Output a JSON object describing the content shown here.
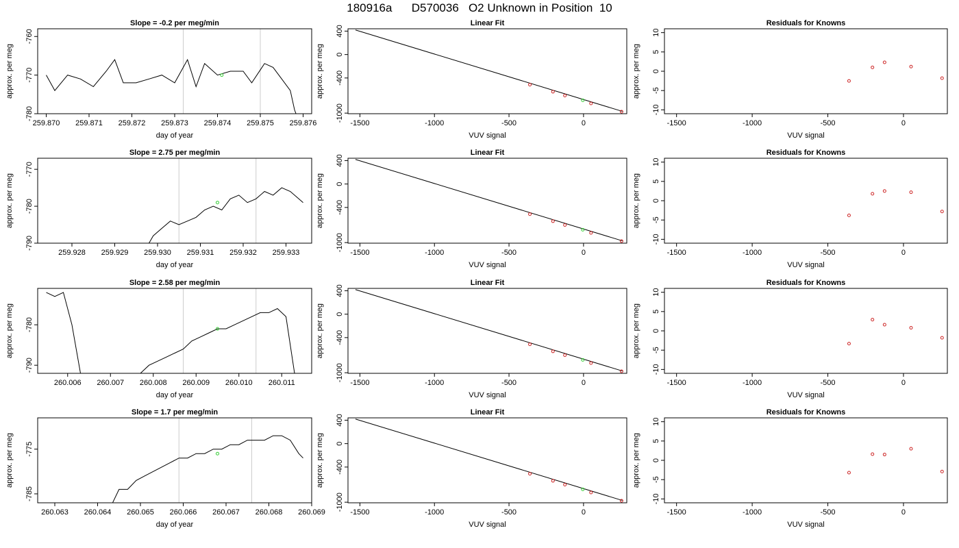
{
  "header": {
    "title": "180916a      D570036   O2 Unknown in Position  10"
  },
  "colors": {
    "line": "#000000",
    "known_point": "#cc2222",
    "unknown_point": "#33cc33",
    "vline": "#cccccc"
  },
  "chart_data": [
    {
      "type": "line",
      "title": "Slope =  -0.2  per meg/min",
      "xlabel": "day of year",
      "ylabel": "approx. per meg",
      "xlim": [
        259.8698,
        259.8762
      ],
      "ylim": [
        -780,
        -758
      ],
      "xticks": [
        259.87,
        259.871,
        259.872,
        259.873,
        259.874,
        259.875,
        259.876
      ],
      "xtick_labels": [
        "259.870",
        "259.871",
        "259.872",
        "259.873",
        "259.874",
        "259.875",
        "259.876"
      ],
      "yticks": [
        -760,
        -770,
        -780
      ],
      "ytick_labels": [
        "-760",
        "-770",
        "-780"
      ],
      "vlines": [
        259.8732,
        259.875
      ],
      "unknown_point": {
        "x": 259.8741,
        "y": -770
      },
      "series": [
        {
          "values": [
            [
              259.87,
              -770
            ],
            [
              259.8702,
              -774
            ],
            [
              259.8705,
              -770
            ],
            [
              259.8708,
              -771
            ],
            [
              259.8711,
              -773
            ],
            [
              259.8714,
              -769
            ],
            [
              259.8716,
              -766
            ],
            [
              259.8718,
              -772
            ],
            [
              259.8721,
              -772
            ],
            [
              259.8724,
              -771
            ],
            [
              259.8727,
              -770
            ],
            [
              259.873,
              -772
            ],
            [
              259.8733,
              -766
            ],
            [
              259.8735,
              -773
            ],
            [
              259.8737,
              -767
            ],
            [
              259.874,
              -770
            ],
            [
              259.8743,
              -769
            ],
            [
              259.8746,
              -769
            ],
            [
              259.8748,
              -772
            ],
            [
              259.8751,
              -767
            ],
            [
              259.8753,
              -768
            ],
            [
              259.8755,
              -771
            ],
            [
              259.8757,
              -774
            ],
            [
              259.8758,
              -779
            ],
            [
              259.8759,
              -782
            ]
          ]
        }
      ]
    },
    {
      "type": "line",
      "title": "Slope =  2.75  per meg/min",
      "xlabel": "day of year",
      "ylabel": "approx. per meg",
      "xlim": [
        259.9272,
        259.9336
      ],
      "ylim": [
        -790,
        -767
      ],
      "xticks": [
        259.928,
        259.929,
        259.93,
        259.931,
        259.932,
        259.933
      ],
      "xtick_labels": [
        "259.928",
        "259.929",
        "259.930",
        "259.931",
        "259.932",
        "259.933"
      ],
      "yticks": [
        -770,
        -780,
        -790
      ],
      "ytick_labels": [
        "-770",
        "-780",
        "-790"
      ],
      "vlines": [
        259.9305,
        259.9323
      ],
      "unknown_point": {
        "x": 259.9314,
        "y": -779
      },
      "series": [
        {
          "values": [
            [
              259.9297,
              -792
            ],
            [
              259.9299,
              -788
            ],
            [
              259.9301,
              -786
            ],
            [
              259.9303,
              -784
            ],
            [
              259.9305,
              -785
            ],
            [
              259.9307,
              -784
            ],
            [
              259.9309,
              -783
            ],
            [
              259.9311,
              -781
            ],
            [
              259.9313,
              -780
            ],
            [
              259.9315,
              -781
            ],
            [
              259.9317,
              -778
            ],
            [
              259.9319,
              -777
            ],
            [
              259.9321,
              -779
            ],
            [
              259.9323,
              -778
            ],
            [
              259.9325,
              -776
            ],
            [
              259.9327,
              -777
            ],
            [
              259.9329,
              -775
            ],
            [
              259.9331,
              -776
            ],
            [
              259.9333,
              -778
            ],
            [
              259.9334,
              -779
            ]
          ]
        }
      ]
    },
    {
      "type": "line",
      "title": "Slope =  2.58  per meg/min",
      "xlabel": "day of year",
      "ylabel": "approx. per meg",
      "xlim": [
        260.0053,
        260.0117
      ],
      "ylim": [
        -792,
        -771
      ],
      "xticks": [
        260.006,
        260.007,
        260.008,
        260.009,
        260.01,
        260.011
      ],
      "xtick_labels": [
        "260.006",
        "260.007",
        "260.008",
        "260.009",
        "260.010",
        "260.011"
      ],
      "yticks": [
        -780,
        -790
      ],
      "ytick_labels": [
        "-780",
        "-790"
      ],
      "vlines": [
        260.0087,
        260.0104
      ],
      "unknown_point": {
        "x": 260.0095,
        "y": -781
      },
      "series": [
        {
          "values": [
            [
              260.0055,
              -772
            ],
            [
              260.0057,
              -773
            ],
            [
              260.0059,
              -772
            ],
            [
              260.0061,
              -780
            ],
            [
              260.0063,
              -792
            ]
          ]
        },
        {
          "values": [
            [
              260.0077,
              -792
            ],
            [
              260.0079,
              -790
            ],
            [
              260.0081,
              -789
            ],
            [
              260.0083,
              -788
            ],
            [
              260.0085,
              -787
            ],
            [
              260.0087,
              -786
            ],
            [
              260.0089,
              -784
            ],
            [
              260.0091,
              -783
            ],
            [
              260.0093,
              -782
            ],
            [
              260.0095,
              -781
            ],
            [
              260.0097,
              -781
            ],
            [
              260.0099,
              -780
            ],
            [
              260.0101,
              -779
            ],
            [
              260.0103,
              -778
            ],
            [
              260.0105,
              -777
            ],
            [
              260.0107,
              -777
            ],
            [
              260.0109,
              -776
            ],
            [
              260.0111,
              -778
            ],
            [
              260.0113,
              -792
            ]
          ]
        }
      ]
    },
    {
      "type": "line",
      "title": "Slope =  1.7  per meg/min",
      "xlabel": "day of year",
      "ylabel": "approx. per meg",
      "xlim": [
        260.0626,
        260.069
      ],
      "ylim": [
        -787,
        -768
      ],
      "xticks": [
        260.063,
        260.064,
        260.065,
        260.066,
        260.067,
        260.068,
        260.069
      ],
      "xtick_labels": [
        "260.063",
        "260.064",
        "260.065",
        "260.066",
        "260.067",
        "260.068",
        "260.069"
      ],
      "yticks": [
        -775,
        -785
      ],
      "ytick_labels": [
        "-775",
        "-785"
      ],
      "vlines": [
        260.0659,
        260.0676
      ],
      "unknown_point": {
        "x": 260.0668,
        "y": -776
      },
      "series": [
        {
          "values": [
            [
              260.0643,
              -788
            ],
            [
              260.0645,
              -784
            ],
            [
              260.0647,
              -784
            ],
            [
              260.0649,
              -782
            ],
            [
              260.0651,
              -781
            ],
            [
              260.0653,
              -780
            ],
            [
              260.0655,
              -779
            ],
            [
              260.0657,
              -778
            ],
            [
              260.0659,
              -777
            ],
            [
              260.0661,
              -777
            ],
            [
              260.0663,
              -776
            ],
            [
              260.0665,
              -776
            ],
            [
              260.0667,
              -775
            ],
            [
              260.0669,
              -775
            ],
            [
              260.0671,
              -774
            ],
            [
              260.0673,
              -774
            ],
            [
              260.0675,
              -773
            ],
            [
              260.0677,
              -773
            ],
            [
              260.0679,
              -773
            ],
            [
              260.0681,
              -772
            ],
            [
              260.0683,
              -772
            ],
            [
              260.0685,
              -773
            ],
            [
              260.0687,
              -776
            ],
            [
              260.0688,
              -777
            ]
          ]
        }
      ]
    },
    {
      "type": "scatter",
      "title": "Linear Fit",
      "xlabel": "VUV signal",
      "ylabel": "approx. per meg",
      "xlim": [
        -1580,
        290
      ],
      "ylim": [
        -1010,
        440
      ],
      "xticks": [
        -1500,
        -1000,
        -500,
        0
      ],
      "xtick_labels": [
        "-1500",
        "-1000",
        "-500",
        "0"
      ],
      "yticks": [
        400,
        0,
        -400,
        -1000
      ],
      "ytick_labels": [
        "400",
        "0",
        "-400",
        "-1000"
      ],
      "fit_line": [
        [
          -1530,
          420
        ],
        [
          260,
          -970
        ]
      ],
      "knowns": [
        [
          -360,
          -515
        ],
        [
          -205,
          -635
        ],
        [
          -125,
          -700
        ],
        [
          50,
          -835
        ],
        [
          255,
          -975
        ]
      ],
      "unknown": [
        -5,
        -780
      ]
    },
    {
      "type": "scatter",
      "title": "Linear Fit",
      "xlabel": "VUV signal",
      "ylabel": "approx. per meg",
      "xlim": [
        -1580,
        290
      ],
      "ylim": [
        -1010,
        440
      ],
      "xticks": [
        -1500,
        -1000,
        -500,
        0
      ],
      "xtick_labels": [
        "-1500",
        "-1000",
        "-500",
        "0"
      ],
      "yticks": [
        400,
        0,
        -400,
        -1000
      ],
      "ytick_labels": [
        "400",
        "0",
        "-400",
        "-1000"
      ],
      "fit_line": [
        [
          -1530,
          420
        ],
        [
          260,
          -970
        ]
      ],
      "knowns": [
        [
          -360,
          -515
        ],
        [
          -205,
          -635
        ],
        [
          -125,
          -700
        ],
        [
          50,
          -835
        ],
        [
          255,
          -975
        ]
      ],
      "unknown": [
        -5,
        -780
      ]
    },
    {
      "type": "scatter",
      "title": "Linear Fit",
      "xlabel": "VUV signal",
      "ylabel": "approx. per meg",
      "xlim": [
        -1580,
        290
      ],
      "ylim": [
        -1010,
        440
      ],
      "xticks": [
        -1500,
        -1000,
        -500,
        0
      ],
      "xtick_labels": [
        "-1500",
        "-1000",
        "-500",
        "0"
      ],
      "yticks": [
        400,
        0,
        -400,
        -1000
      ],
      "ytick_labels": [
        "400",
        "0",
        "-400",
        "-1000"
      ],
      "fit_line": [
        [
          -1530,
          420
        ],
        [
          260,
          -970
        ]
      ],
      "knowns": [
        [
          -360,
          -515
        ],
        [
          -205,
          -635
        ],
        [
          -125,
          -700
        ],
        [
          50,
          -835
        ],
        [
          255,
          -975
        ]
      ],
      "unknown": [
        -5,
        -780
      ]
    },
    {
      "type": "scatter",
      "title": "Linear Fit",
      "xlabel": "VUV signal",
      "ylabel": "approx. per meg",
      "xlim": [
        -1580,
        290
      ],
      "ylim": [
        -1010,
        440
      ],
      "xticks": [
        -1500,
        -1000,
        -500,
        0
      ],
      "xtick_labels": [
        "-1500",
        "-1000",
        "-500",
        "0"
      ],
      "yticks": [
        400,
        0,
        -400,
        -1000
      ],
      "ytick_labels": [
        "400",
        "0",
        "-400",
        "-1000"
      ],
      "fit_line": [
        [
          -1530,
          420
        ],
        [
          260,
          -970
        ]
      ],
      "knowns": [
        [
          -360,
          -515
        ],
        [
          -205,
          -635
        ],
        [
          -125,
          -700
        ],
        [
          50,
          -835
        ],
        [
          255,
          -975
        ]
      ],
      "unknown": [
        -5,
        -780
      ]
    },
    {
      "type": "scatter",
      "title": "Residuals for Knowns",
      "xlabel": "VUV signal",
      "ylabel": "approx. per meg",
      "xlim": [
        -1580,
        290
      ],
      "ylim": [
        -11,
        11
      ],
      "xticks": [
        -1500,
        -1000,
        -500,
        0
      ],
      "xtick_labels": [
        "-1500",
        "-1000",
        "-500",
        "0"
      ],
      "yticks": [
        10,
        5,
        0,
        -5,
        -10
      ],
      "ytick_labels": [
        "10",
        "5",
        "0",
        "-5",
        "-10"
      ],
      "points": [
        [
          -360,
          -2.5
        ],
        [
          -205,
          1.0
        ],
        [
          -125,
          2.3
        ],
        [
          50,
          1.2
        ],
        [
          255,
          -1.8
        ]
      ]
    },
    {
      "type": "scatter",
      "title": "Residuals for Knowns",
      "xlabel": "VUV signal",
      "ylabel": "approx. per meg",
      "xlim": [
        -1580,
        290
      ],
      "ylim": [
        -11,
        11
      ],
      "xticks": [
        -1500,
        -1000,
        -500,
        0
      ],
      "xtick_labels": [
        "-1500",
        "-1000",
        "-500",
        "0"
      ],
      "yticks": [
        10,
        5,
        0,
        -5,
        -10
      ],
      "ytick_labels": [
        "10",
        "5",
        "0",
        "-5",
        "-10"
      ],
      "points": [
        [
          -360,
          -3.8
        ],
        [
          -205,
          1.8
        ],
        [
          -125,
          2.5
        ],
        [
          50,
          2.2
        ],
        [
          255,
          -2.8
        ]
      ]
    },
    {
      "type": "scatter",
      "title": "Residuals for Knowns",
      "xlabel": "VUV signal",
      "ylabel": "approx. per meg",
      "xlim": [
        -1580,
        290
      ],
      "ylim": [
        -11,
        11
      ],
      "xticks": [
        -1500,
        -1000,
        -500,
        0
      ],
      "xtick_labels": [
        "-1500",
        "-1000",
        "-500",
        "0"
      ],
      "yticks": [
        10,
        5,
        0,
        -5,
        -10
      ],
      "ytick_labels": [
        "10",
        "5",
        "0",
        "-5",
        "-10"
      ],
      "points": [
        [
          -360,
          -3.3
        ],
        [
          -205,
          2.9
        ],
        [
          -125,
          1.6
        ],
        [
          50,
          0.8
        ],
        [
          255,
          -1.8
        ]
      ]
    },
    {
      "type": "scatter",
      "title": "Residuals for Knowns",
      "xlabel": "VUV signal",
      "ylabel": "approx. per meg",
      "xlim": [
        -1580,
        290
      ],
      "ylim": [
        -11,
        11
      ],
      "xticks": [
        -1500,
        -1000,
        -500,
        0
      ],
      "xtick_labels": [
        "-1500",
        "-1000",
        "-500",
        "0"
      ],
      "yticks": [
        10,
        5,
        0,
        -5,
        -10
      ],
      "ytick_labels": [
        "10",
        "5",
        "0",
        "-5",
        "-10"
      ],
      "points": [
        [
          -360,
          -3.2
        ],
        [
          -205,
          1.6
        ],
        [
          -125,
          1.5
        ],
        [
          50,
          3.0
        ],
        [
          255,
          -2.9
        ]
      ]
    }
  ]
}
